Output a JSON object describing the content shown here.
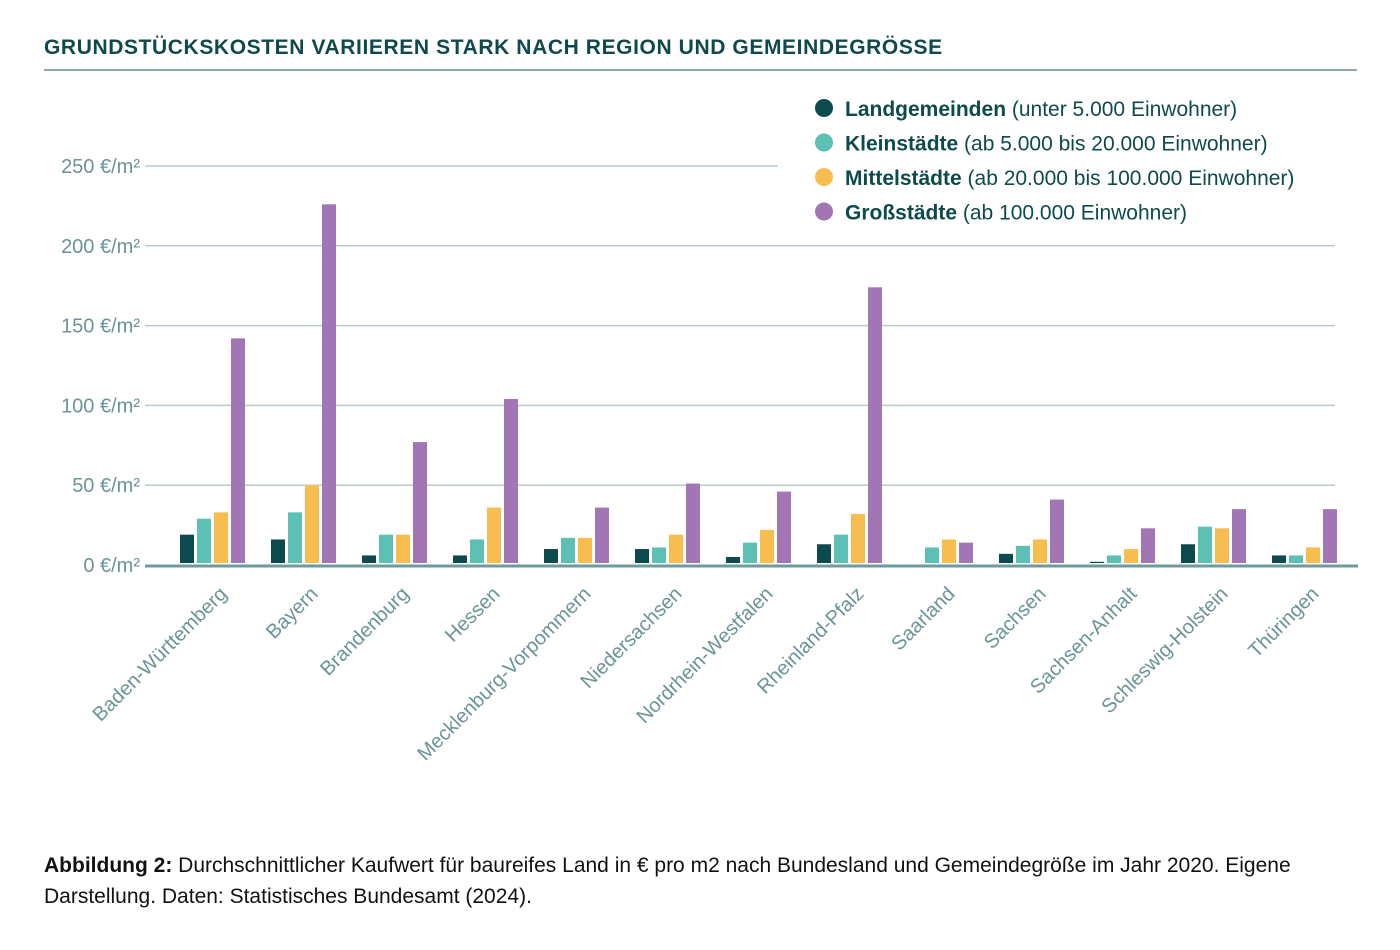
{
  "title": "GRUNDSTÜCKSKOSTEN VARIIEREN STARK NACH REGION UND GEMEINDEGRÖSSE",
  "caption": {
    "label": "Abbildung 2:",
    "text": " Durchschnittlicher Kaufwert für baureifes Land in € pro m2 nach Bundesland und Gemeindegröße im Jahr 2020. Eigene Darstellung. Daten: Statistisches Bundesamt (2024)."
  },
  "chart_data": {
    "type": "bar",
    "title": "GRUNDSTÜCKSKOSTEN VARIIEREN STARK NACH REGION UND GEMEINDEGRÖSSE",
    "xlabel": "",
    "ylabel": "€/m²",
    "ylim": [
      0,
      250
    ],
    "yticks": [
      0,
      50,
      100,
      150,
      200,
      250
    ],
    "ytick_labels": [
      "0 €/m²",
      "50 €/m²",
      "100 €/m²",
      "150 €/m²",
      "200 €/m²",
      "250 €/m²"
    ],
    "grid": true,
    "legend_position": "top-right",
    "categories": [
      "Baden-Württemberg",
      "Bayern",
      "Brandenburg",
      "Hessen",
      "Mecklenburg-Vorpommern",
      "Niedersachsen",
      "Nordrhein-Westfalen",
      "Rheinland-Pfalz",
      "Saarland",
      "Sachsen",
      "Sachsen-Anhalt",
      "Schleswig-Holstein",
      "Thüringen"
    ],
    "series": [
      {
        "name": "Landgemeinden",
        "desc": "(unter 5.000 Einwohner)",
        "color": "#0d4a4d",
        "values": [
          19,
          16,
          6,
          6,
          10,
          10,
          5,
          13,
          null,
          7,
          2,
          13,
          6
        ]
      },
      {
        "name": "Kleinstädte",
        "desc": "(ab 5.000 bis 20.000 Einwohner)",
        "color": "#5cc0b5",
        "values": [
          29,
          33,
          19,
          16,
          17,
          11,
          14,
          19,
          11,
          12,
          6,
          24,
          6
        ]
      },
      {
        "name": "Mittelstädte",
        "desc": "(ab 20.000 bis 100.000 Einwohner)",
        "color": "#f8bd4f",
        "values": [
          33,
          50,
          19,
          36,
          17,
          19,
          22,
          32,
          16,
          16,
          10,
          23,
          11
        ]
      },
      {
        "name": "Großstädte",
        "desc": "(ab 100.000 Einwohner)",
        "color": "#a275b4",
        "values": [
          142,
          226,
          77,
          104,
          36,
          51,
          46,
          174,
          14,
          41,
          23,
          35,
          35
        ]
      }
    ]
  }
}
